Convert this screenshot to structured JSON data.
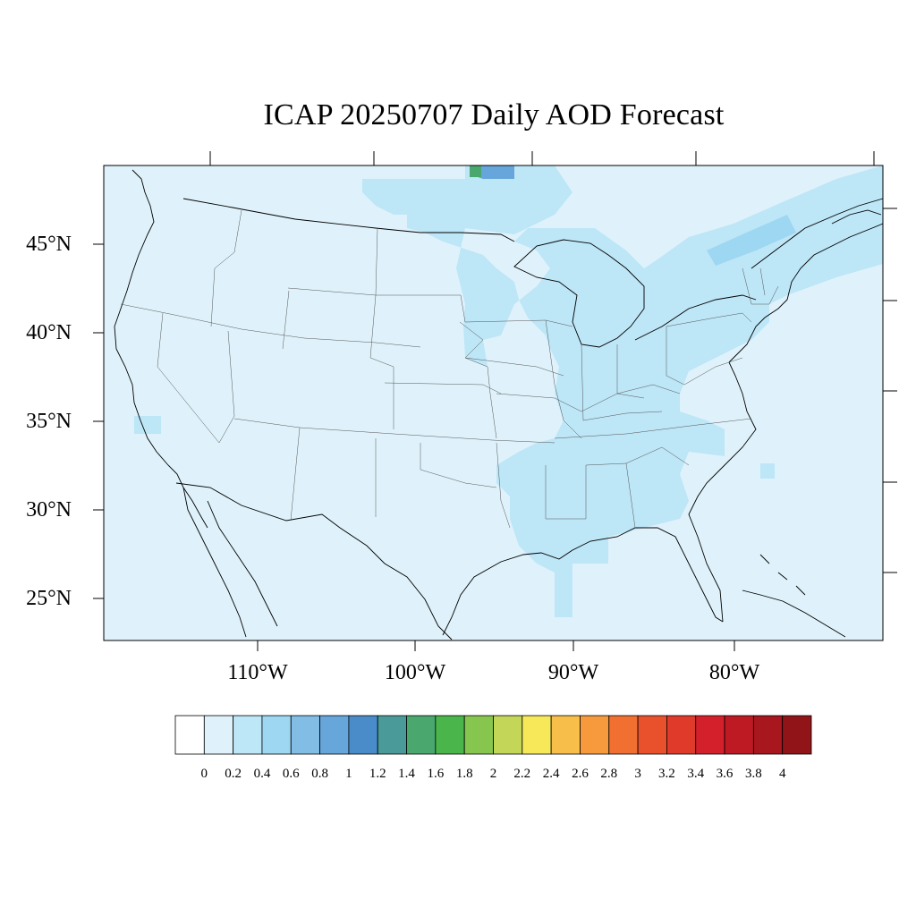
{
  "title": "ICAP 20250707 Daily AOD Forecast",
  "map": {
    "background_color": "#dff2fb",
    "lat_ticks": [
      "45°N",
      "40°N",
      "35°N",
      "30°N",
      "25°N"
    ],
    "lon_ticks": [
      "110°W",
      "100°W",
      "90°W",
      "80°W"
    ],
    "lat_values": [
      45,
      40,
      35,
      30,
      25
    ],
    "lon_values": [
      -110,
      -100,
      -90,
      -80
    ]
  },
  "colorbar": {
    "labels": [
      "0",
      "0.2",
      "0.4",
      "0.6",
      "0.8",
      "1",
      "1.2",
      "1.4",
      "1.6",
      "1.8",
      "2",
      "2.2",
      "2.4",
      "2.6",
      "2.8",
      "3",
      "3.2",
      "3.4",
      "3.6",
      "3.8",
      "4"
    ],
    "colors": [
      "#ffffff",
      "#dff2fb",
      "#bde6f7",
      "#9dd7f2",
      "#82bde6",
      "#66a6db",
      "#4a8bc9",
      "#4a9a9a",
      "#4aa86e",
      "#4ab54a",
      "#86c54e",
      "#c3d658",
      "#f7e85a",
      "#f7be4a",
      "#f79a3e",
      "#f16f30",
      "#e9512c",
      "#df3a2a",
      "#d4202a",
      "#bd1a24",
      "#a8161e",
      "#901418"
    ]
  }
}
